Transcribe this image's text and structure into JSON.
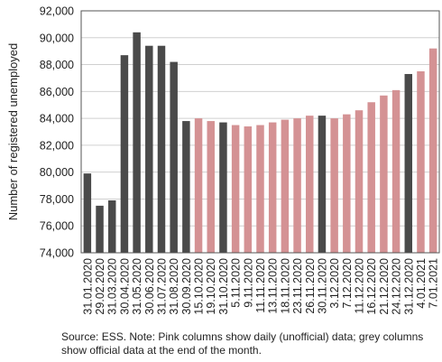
{
  "chart_data": {
    "type": "bar",
    "ylabel": "Number of registered unemployed",
    "ylim": [
      74000,
      92000
    ],
    "yticks": [
      74000,
      76000,
      78000,
      80000,
      82000,
      84000,
      86000,
      88000,
      90000,
      92000
    ],
    "ytick_labels": [
      "74,000",
      "76,000",
      "78,000",
      "80,000",
      "82,000",
      "84,000",
      "86,000",
      "88,000",
      "90,000",
      "92,000"
    ],
    "grid": true,
    "categories": [
      "31.01.2020",
      "29.02.2020",
      "31.03.2020",
      "30.04.2020",
      "31.05.2020",
      "30.06.2020",
      "31.07.2020",
      "31.08.2020",
      "30.09.2020",
      "15.10.2020",
      "19.10.2020",
      "31.10.2020",
      "5.11.2020",
      "9.11.2020",
      "11.11.2020",
      "13.11.2020",
      "18.11.2020",
      "23.11.2020",
      "26.11.2020",
      "30.11.2020",
      "3.12.2020",
      "7.12.2020",
      "11.12.2020",
      "16.12.2020",
      "21.12.2020",
      "24.12.2020",
      "31.12.2020",
      "4.01.2021",
      "7.01.2021"
    ],
    "values": [
      79900,
      77500,
      77900,
      88700,
      90400,
      89400,
      89400,
      88200,
      83800,
      84000,
      83800,
      83700,
      83500,
      83400,
      83500,
      83700,
      83900,
      84000,
      84200,
      84200,
      84000,
      84300,
      84600,
      85200,
      85700,
      86100,
      87300,
      87500,
      89200
    ],
    "kind": [
      "official",
      "official",
      "official",
      "official",
      "official",
      "official",
      "official",
      "official",
      "official",
      "daily",
      "daily",
      "official",
      "daily",
      "daily",
      "daily",
      "daily",
      "daily",
      "daily",
      "daily",
      "official",
      "daily",
      "daily",
      "daily",
      "daily",
      "daily",
      "daily",
      "official",
      "daily",
      "daily"
    ],
    "colors": {
      "official": "#4a4a4a",
      "daily": "#d49294",
      "grid": "#d0d0d0",
      "axis": "#555555"
    }
  },
  "caption": "Source: ESS. Note: Pink columns show daily (unofficial) data; grey columns show official data at the end of the month."
}
